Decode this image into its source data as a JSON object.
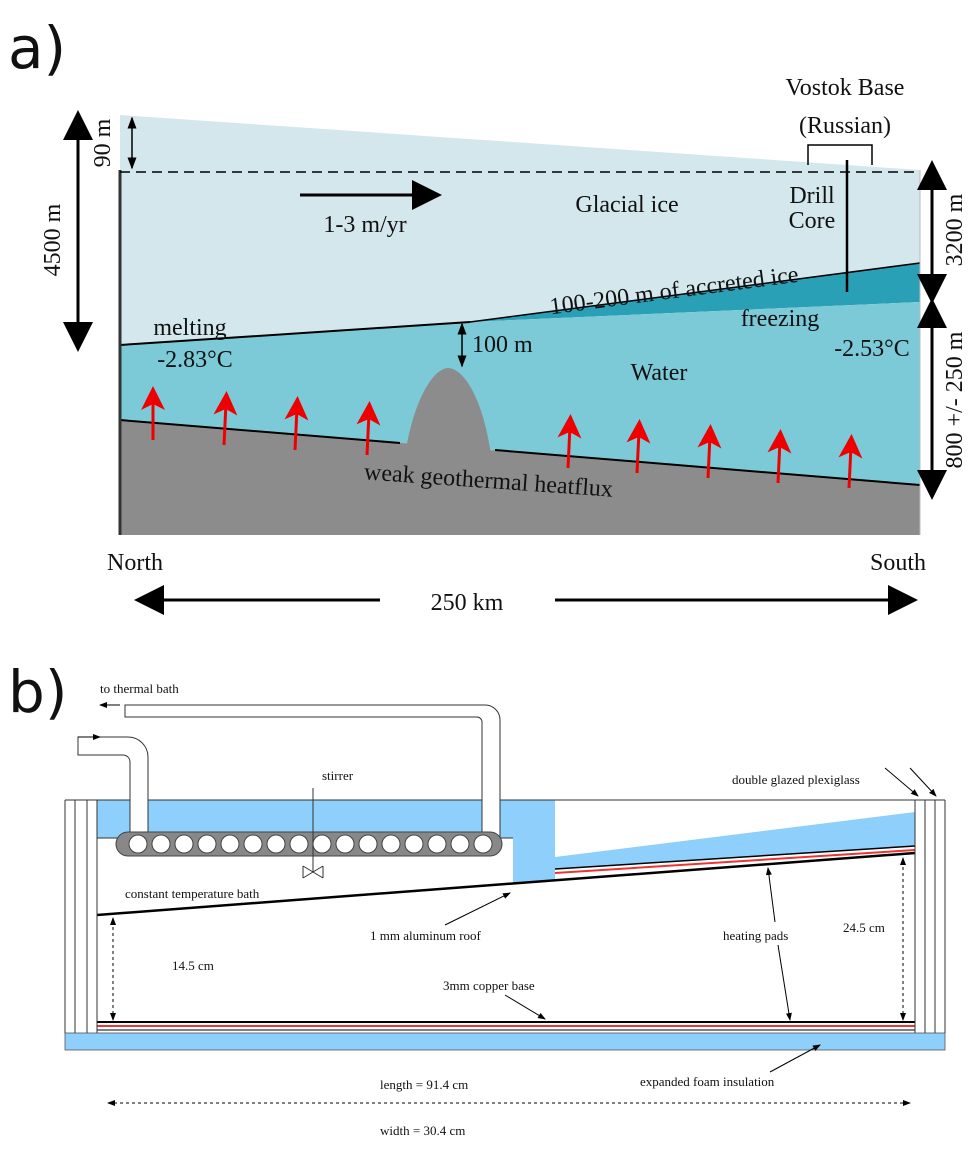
{
  "panel_a": {
    "label": "a)",
    "station_line1": "Vostok Base",
    "station_line2": "(Russian)",
    "ice_above": "90 m",
    "total_depth": "4500 m",
    "flow_rate": "1-3 m/yr",
    "glacial_ice": "Glacial ice",
    "drill_line1": "Drill",
    "drill_line2": "Core",
    "ice_at_vostok": "3200 m",
    "accreted_ice": "100-200 m of accreted ice",
    "melting": "melting",
    "temp_north": "-2.83°C",
    "freezing": "freezing",
    "temp_south": "-2.53°C",
    "gap": "100 m",
    "water": "Water",
    "water_depth": "800 +/- 250 m",
    "heatflux": "weak geothermal heatflux",
    "north": "North",
    "south": "South",
    "span": "250 km"
  },
  "panel_b": {
    "label": "b)",
    "to_bath": "to thermal bath",
    "stirrer": "stirrer",
    "plexiglass": "double glazed plexiglass",
    "bath": "constant temperature bath",
    "roof": "1 mm aluminum roof",
    "heating_pads": "heating pads",
    "height_right": "24.5 cm",
    "height_left": "14.5 cm",
    "copper_base": "3mm copper base",
    "length": "length = 91.4 cm",
    "foam": "expanded foam insulation",
    "width": "width = 30.4 cm"
  }
}
